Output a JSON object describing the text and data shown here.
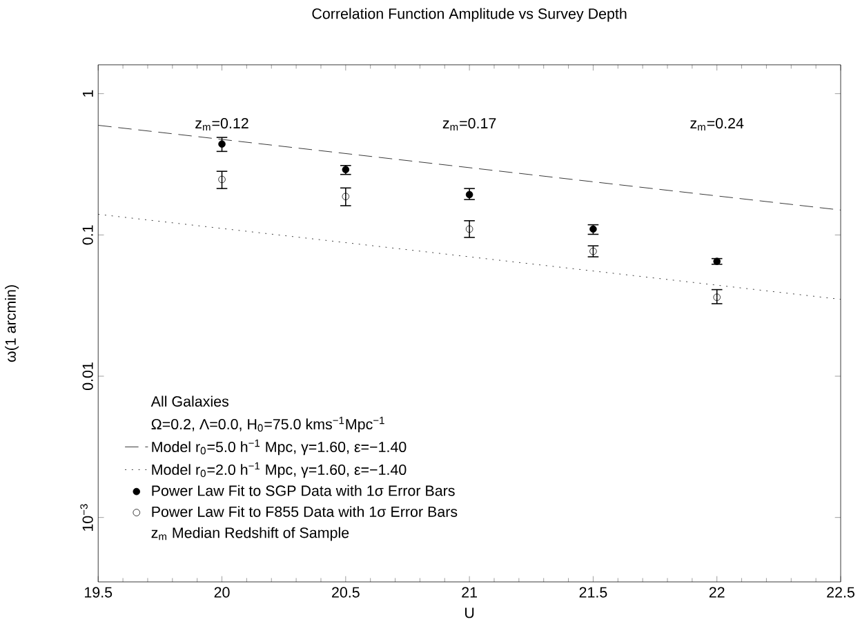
{
  "chart_data": {
    "type": "scatter",
    "title": "Correlation Function Amplitude vs Survey Depth",
    "xlabel": "U",
    "ylabel": "ω(1 arcmin)",
    "legend_title": "All Galaxies",
    "xlim": [
      19.5,
      22.5
    ],
    "xticks": [
      19.5,
      20,
      20.5,
      21,
      21.5,
      22,
      22.5
    ],
    "ylim": [
      0.00035,
      1.6
    ],
    "yticks": [
      1,
      0.1,
      0.01,
      {
        "value": 0.001,
        "label": "10$^{−3}$"
      }
    ],
    "log": "y",
    "legend": "bottom left",
    "series": [
      {
        "name": "Model r$_{0}$=5.0 h$^{−1}$ Mpc, γ=1.60, ε=−1.40",
        "type": "line",
        "color": "#000000",
        "x": [
          19.5,
          22.5
        ],
        "values": [
          0.597,
          0.15
        ],
        "line_style": "dashed",
        "marker": "none"
      },
      {
        "name": "Model r$_{0}$=2.0 h$^{−1}$ Mpc, γ=1.60, ε=−1.40",
        "type": "line",
        "color": "#000000",
        "x": [
          19.5,
          22.5
        ],
        "values": [
          0.14,
          0.035
        ],
        "line_style": "dotted",
        "marker": "none"
      },
      {
        "name": "Power Law Fit to SGP Data with 1σ Error Bars",
        "color": "#000000",
        "x": [
          20,
          20.5,
          21,
          21.5,
          22
        ],
        "values": [
          0.44,
          0.29,
          0.193,
          0.11,
          0.065
        ],
        "errors": [
          [
            0.39,
            0.49
          ],
          [
            0.268,
            0.31
          ],
          [
            0.178,
            0.213
          ],
          [
            0.101,
            0.118
          ],
          [
            0.062,
            0.068
          ]
        ],
        "marker": "circle"
      },
      {
        "name": "Power Law Fit to F855 Data with 1σ Error Bars",
        "color": "#000000",
        "x": [
          20,
          20.5,
          21,
          21.5,
          22
        ],
        "values": [
          0.247,
          0.187,
          0.11,
          0.0766,
          0.0362
        ],
        "errors": [
          [
            0.213,
            0.282
          ],
          [
            0.161,
            0.215
          ],
          [
            0.096,
            0.126
          ],
          [
            0.07,
            0.0837
          ],
          [
            0.0326,
            0.041
          ]
        ],
        "marker": "circle-open"
      }
    ],
    "annotations": [
      "z$_{m}$=0.12",
      "z$_{m}$=0.17",
      "z$_{m}$=0.24",
      "Ω=0.2, Λ=0.0, H$_{0}$=75.0 kms$^{−1}$Mpc$^{−1}$",
      "z$_{m}$ Median Redshift of Sample"
    ]
  }
}
